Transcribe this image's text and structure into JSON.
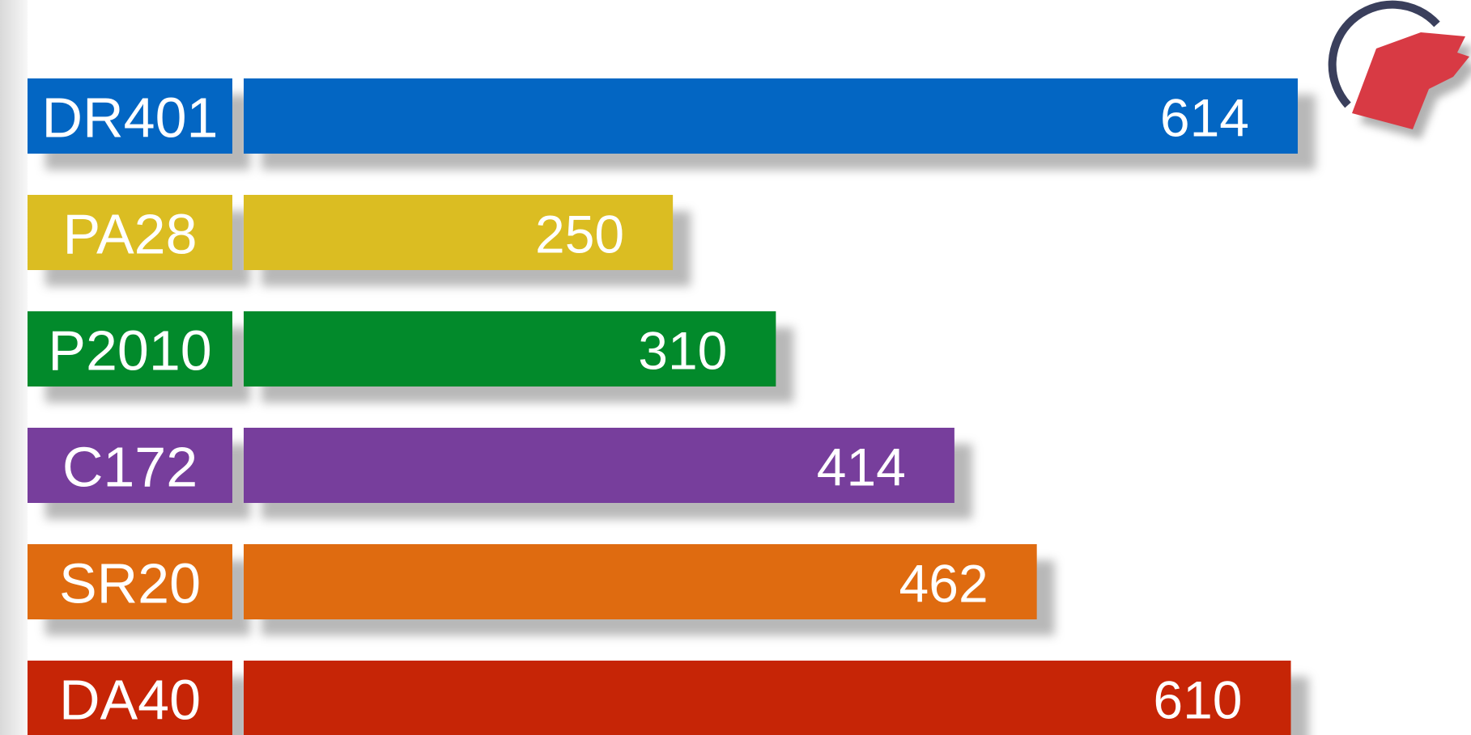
{
  "chart_data": {
    "type": "bar",
    "orientation": "horizontal",
    "categories": [
      "DR401",
      "PA28",
      "P2010",
      "C172",
      "SR20",
      "DA40"
    ],
    "values": [
      614,
      250,
      310,
      414,
      462,
      610
    ],
    "colors": [
      "#0366c3",
      "#dbbd22",
      "#028a2b",
      "#773e9c",
      "#df6b10",
      "#c62506"
    ]
  }
}
